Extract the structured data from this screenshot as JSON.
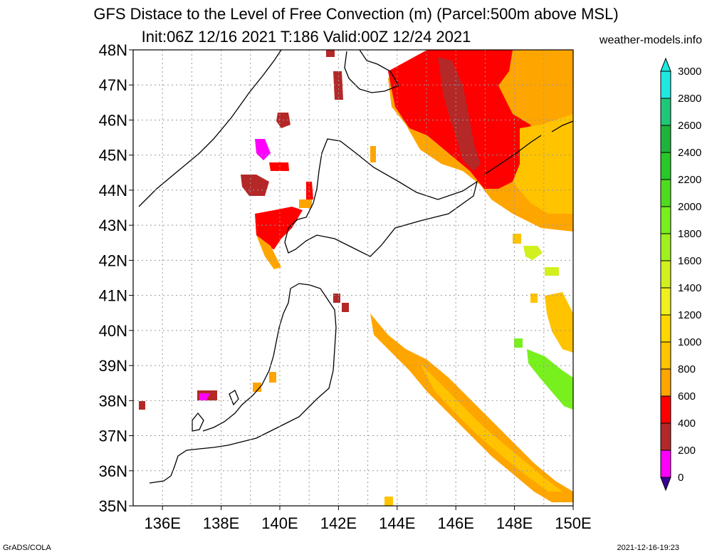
{
  "title_line1": "GFS Distace to the Level of Free Convection (m) (Parcel:500m above MSL)",
  "title_line2": "Init:06Z 12/16 2021 T:186 Valid:00Z 12/24 2021",
  "credit": "weather-models.info",
  "footer_left": "GrADS/COLA",
  "footer_right": "2021-12-16-19:23",
  "map": {
    "lat_labels": [
      "48N",
      "47N",
      "46N",
      "45N",
      "44N",
      "43N",
      "42N",
      "41N",
      "40N",
      "39N",
      "38N",
      "37N",
      "36N",
      "35N"
    ],
    "lon_labels": [
      "136E",
      "138E",
      "140E",
      "142E",
      "144E",
      "146E",
      "148E",
      "150E"
    ]
  },
  "colorbar": {
    "levels": [
      "3000",
      "2800",
      "2600",
      "2400",
      "2200",
      "2000",
      "1800",
      "1600",
      "1400",
      "1200",
      "1000",
      "800",
      "600",
      "400",
      "200",
      "0"
    ],
    "colors": [
      "#1ee8e0",
      "#1ec878",
      "#1eb43c",
      "#28c828",
      "#50dc1e",
      "#78f01e",
      "#a0f01e",
      "#d2f01e",
      "#f0f01e",
      "#ffd700",
      "#ffc300",
      "#ffa500",
      "#ff0000",
      "#b42828",
      "#ff00ff",
      "#3c0096"
    ]
  },
  "chart_data": {
    "type": "heatmap",
    "title": "GFS Distace to the Level of Free Convection (m) (Parcel:500m above MSL)",
    "lon_range": [
      135,
      150
    ],
    "lat_range": [
      35,
      48
    ],
    "levels": [
      0,
      200,
      400,
      600,
      800,
      1000,
      1200,
      1400,
      1600,
      1800,
      2000,
      2200,
      2400,
      2600,
      2800,
      3000
    ]
  }
}
